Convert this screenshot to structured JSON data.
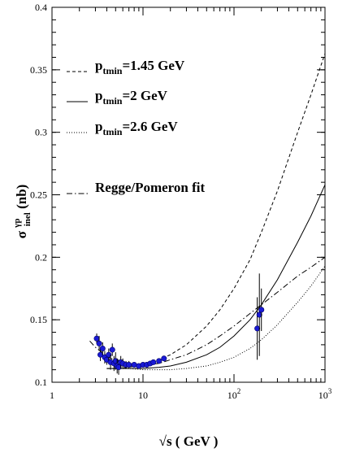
{
  "chart_data": {
    "type": "line",
    "x_scale": "log",
    "xlim": [
      1,
      1000
    ],
    "ylim": [
      0.1,
      0.4
    ],
    "grid": false,
    "legend_placement": "top-left",
    "xlabel": "√s ( GeV )",
    "ylabel_main": "σ",
    "ylabel_sup": "γp",
    "ylabel_sub": "inel",
    "ylabel_tail": "(nb)",
    "x_ticks": [
      {
        "value": 1,
        "label": "1",
        "exp": ""
      },
      {
        "value": 10,
        "label": "10",
        "exp": ""
      },
      {
        "value": 100,
        "label": "10",
        "exp": "2"
      },
      {
        "value": 1000,
        "label": "10",
        "exp": "3"
      }
    ],
    "y_ticks": [
      {
        "value": 0.1,
        "label": "0.1"
      },
      {
        "value": 0.15,
        "label": "0.15"
      },
      {
        "value": 0.2,
        "label": "0.2"
      },
      {
        "value": 0.25,
        "label": "0.25"
      },
      {
        "value": 0.3,
        "label": "0.3"
      },
      {
        "value": 0.35,
        "label": "0.35"
      },
      {
        "value": 0.4,
        "label": "0.4"
      }
    ],
    "legend": [
      {
        "label": "p",
        "sub": "tmin",
        "tail": "=1.45 GeV",
        "style": "dashed"
      },
      {
        "label": "p",
        "sub": "tmin",
        "tail": "=2 GeV",
        "style": "solid"
      },
      {
        "label": "p",
        "sub": "tmin",
        "tail": "=2.6 GeV",
        "style": "dotted"
      },
      {
        "label": "Regge/Pomeron fit",
        "sub": "",
        "tail": "",
        "style": "dashdot"
      }
    ],
    "series": [
      {
        "name": "ptmin=1.45 GeV",
        "style": "dashed",
        "x": [
          4,
          5,
          7,
          10,
          15,
          20,
          30,
          50,
          70,
          100,
          150,
          200,
          300,
          500,
          700,
          1000
        ],
        "y": [
          0.111,
          0.111,
          0.112,
          0.114,
          0.118,
          0.122,
          0.13,
          0.145,
          0.158,
          0.175,
          0.198,
          0.22,
          0.253,
          0.3,
          0.33,
          0.363
        ]
      },
      {
        "name": "ptmin=2 GeV",
        "style": "solid",
        "x": [
          4,
          5,
          7,
          10,
          15,
          20,
          30,
          50,
          70,
          100,
          150,
          200,
          300,
          500,
          700,
          1000
        ],
        "y": [
          0.111,
          0.111,
          0.111,
          0.111,
          0.112,
          0.113,
          0.116,
          0.122,
          0.128,
          0.137,
          0.15,
          0.162,
          0.182,
          0.212,
          0.233,
          0.258
        ]
      },
      {
        "name": "ptmin=2.6 GeV",
        "style": "dotted",
        "x": [
          5,
          7,
          10,
          15,
          20,
          30,
          50,
          70,
          100,
          150,
          200,
          300,
          500,
          700,
          1000
        ],
        "y": [
          0.111,
          0.111,
          0.11,
          0.11,
          0.11,
          0.111,
          0.113,
          0.116,
          0.12,
          0.127,
          0.134,
          0.146,
          0.164,
          0.177,
          0.193
        ]
      },
      {
        "name": "Regge/Pomeron fit",
        "style": "dashdot",
        "x": [
          2.6,
          3,
          4,
          5,
          7,
          10,
          15,
          20,
          30,
          50,
          70,
          100,
          150,
          200,
          300,
          500,
          700,
          1000
        ],
        "y": [
          0.133,
          0.128,
          0.121,
          0.117,
          0.114,
          0.114,
          0.115,
          0.118,
          0.122,
          0.13,
          0.137,
          0.145,
          0.155,
          0.162,
          0.172,
          0.185,
          0.192,
          0.2
        ]
      }
    ],
    "data_points": {
      "color": "#1a1ad6",
      "x": [
        3.1,
        3.3,
        3.4,
        3.6,
        3.8,
        4.0,
        4.2,
        4.4,
        4.6,
        4.8,
        5.0,
        5.2,
        5.4,
        5.7,
        6.0,
        6.5,
        7.0,
        8.0,
        9.0,
        10.0,
        11.0,
        12.0,
        13.0,
        15.0,
        17.0,
        180,
        190,
        200
      ],
      "y": [
        0.135,
        0.131,
        0.122,
        0.127,
        0.12,
        0.118,
        0.122,
        0.116,
        0.126,
        0.115,
        0.117,
        0.113,
        0.112,
        0.116,
        0.115,
        0.114,
        0.114,
        0.114,
        0.113,
        0.114,
        0.114,
        0.115,
        0.116,
        0.117,
        0.119,
        0.143,
        0.154,
        0.158
      ],
      "err": [
        0.004,
        0.006,
        0.005,
        0.005,
        0.005,
        0.004,
        0.005,
        0.006,
        0.005,
        0.006,
        0.007,
        0.006,
        0.006,
        0.005,
        0.004,
        0.003,
        0.003,
        0.002,
        0.002,
        0.002,
        0.002,
        0.002,
        0.002,
        0.002,
        0.002,
        0.025,
        0.033,
        0.017
      ]
    }
  }
}
